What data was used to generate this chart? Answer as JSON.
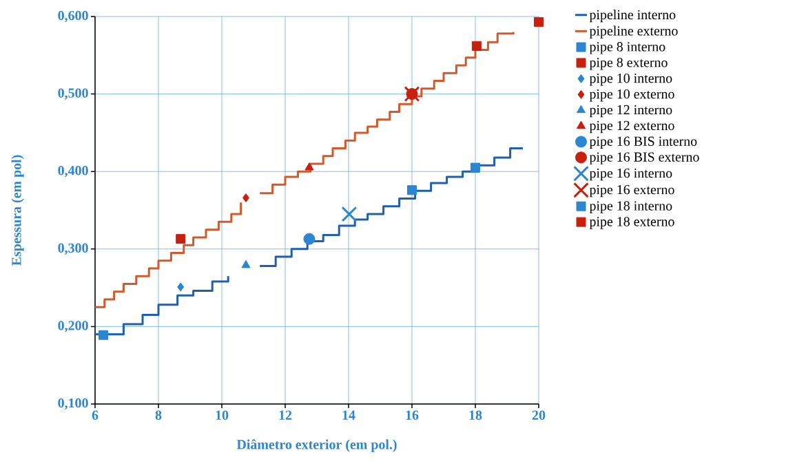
{
  "chart_data": {
    "type": "scatter",
    "xlabel": "Diâmetro exterior (em pol.)",
    "ylabel": "Espessura (em pol)",
    "xlim": [
      6,
      20
    ],
    "ylim": [
      0.1,
      0.6
    ],
    "xticks": [
      6,
      8,
      10,
      12,
      14,
      16,
      18,
      20
    ],
    "yticks": [
      {
        "value": 0.1,
        "label": "0,100"
      },
      {
        "value": 0.2,
        "label": "0,200"
      },
      {
        "value": 0.3,
        "label": "0,300"
      },
      {
        "value": 0.4,
        "label": "0,400"
      },
      {
        "value": 0.5,
        "label": "0,500"
      },
      {
        "value": 0.6,
        "label": "0,600"
      }
    ],
    "grid": true,
    "legend": "right",
    "series": [
      {
        "name": "pipeline interno",
        "type": "step",
        "marker": "none",
        "color": "#1f5fae",
        "x": [
          6.0,
          6.9,
          7.5,
          8.0,
          8.6,
          9.1,
          9.7,
          10.2,
          10.65,
          11.2,
          11.7,
          12.2,
          12.7,
          13.2,
          13.7,
          14.2,
          14.6,
          15.1,
          15.6,
          16.1,
          16.6,
          17.1,
          17.6,
          18.1,
          18.6,
          19.1,
          19.5
        ],
        "values": [
          0.19,
          0.203,
          0.215,
          0.228,
          0.24,
          0.246,
          0.258,
          0.265,
          null,
          0.278,
          0.29,
          0.3,
          0.31,
          0.318,
          0.33,
          0.338,
          0.345,
          0.355,
          0.365,
          0.375,
          0.385,
          0.393,
          0.4,
          0.408,
          0.418,
          0.43,
          0.43
        ]
      },
      {
        "name": "pipeline externo",
        "type": "step",
        "marker": "none",
        "color": "#d05a2c",
        "x": [
          6.0,
          6.3,
          6.6,
          6.9,
          7.3,
          7.7,
          8.0,
          8.4,
          8.8,
          9.1,
          9.5,
          9.9,
          10.3,
          10.6,
          11.0,
          11.2,
          11.6,
          12.0,
          12.4,
          12.8,
          13.2,
          13.5,
          13.9,
          14.2,
          14.6,
          14.9,
          15.3,
          15.6,
          16.0,
          16.3,
          16.7,
          17.0,
          17.4,
          17.7,
          18.0,
          18.4,
          18.7,
          19.2
        ],
        "values": [
          0.225,
          0.235,
          0.245,
          0.255,
          0.265,
          0.275,
          0.285,
          0.295,
          0.305,
          0.315,
          0.325,
          0.335,
          0.345,
          0.36,
          null,
          0.372,
          0.383,
          0.393,
          0.4,
          0.41,
          0.42,
          0.43,
          0.44,
          0.45,
          0.458,
          0.467,
          0.477,
          0.487,
          0.497,
          0.507,
          0.517,
          0.527,
          0.537,
          0.547,
          0.557,
          0.567,
          0.578,
          0.58
        ]
      },
      {
        "name": "pipe 8 interno",
        "marker": "square",
        "color": "#2a86d0",
        "x": [
          6.26,
          18.0
        ],
        "values": [
          0.189,
          0.405
        ]
      },
      {
        "name": "pipe 8 externo",
        "marker": "square",
        "color": "#c8200f",
        "x": [
          8.7,
          20.0
        ],
        "values": [
          0.313,
          0.593
        ]
      },
      {
        "name": "pipe 10 interno",
        "marker": "diamond",
        "color": "#2a86d0",
        "x": [
          8.7
        ],
        "values": [
          0.251
        ]
      },
      {
        "name": "pipe 10 externo",
        "marker": "diamond",
        "color": "#c8200f",
        "x": [
          10.76
        ],
        "values": [
          0.366
        ]
      },
      {
        "name": "pipe 12 interno",
        "marker": "triangle",
        "color": "#2a86d0",
        "x": [
          10.76
        ],
        "values": [
          0.279
        ]
      },
      {
        "name": "pipe 12 externo",
        "marker": "triangle",
        "color": "#c8200f",
        "x": [
          12.76
        ],
        "values": [
          0.405
        ]
      },
      {
        "name": "pipe 16 BIS interno",
        "marker": "circle",
        "color": "#2a86d0",
        "x": [
          12.76
        ],
        "values": [
          0.313
        ]
      },
      {
        "name": "pipe 16 BIS externo",
        "marker": "circle",
        "color": "#c8200f",
        "x": [
          16.0
        ],
        "values": [
          0.5
        ]
      },
      {
        "name": "pipe 16 interno",
        "marker": "cross",
        "color": "#2a86d0",
        "x": [
          14.02
        ],
        "values": [
          0.345
        ]
      },
      {
        "name": "pipe 16 externo",
        "marker": "cross",
        "color": "#c8200f",
        "x": [
          16.0
        ],
        "values": [
          0.5
        ]
      },
      {
        "name": "pipe 18 interno",
        "marker": "square",
        "color": "#2a86d0",
        "x": [
          16.0
        ],
        "values": [
          0.376
        ]
      },
      {
        "name": "pipe 18 externo",
        "marker": "square",
        "color": "#c8200f",
        "x": [
          18.04
        ],
        "values": [
          0.562
        ]
      }
    ]
  }
}
